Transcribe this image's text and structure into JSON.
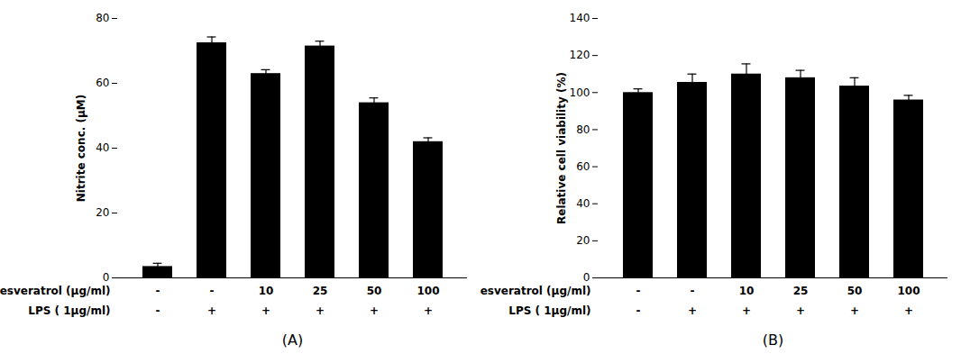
{
  "chart_data": [
    {
      "type": "bar",
      "ylabel": "Nitrite conc. (μM)",
      "xlabel": "(A)",
      "categories": [
        [
          "-",
          "-"
        ],
        [
          "-",
          "+"
        ],
        [
          "10",
          "+"
        ],
        [
          "25",
          "+"
        ],
        [
          "50",
          "+"
        ],
        [
          "100",
          "+"
        ]
      ],
      "category_rows": [
        "Resveratrol (μg/ml)",
        "LPS ( 1μg/ml)"
      ],
      "values": [
        3.5,
        72.5,
        63.0,
        71.5,
        54.0,
        42.0
      ],
      "errors": [
        1.0,
        1.8,
        1.2,
        1.5,
        1.5,
        1.2
      ],
      "color": "#000000",
      "ylim": [
        0,
        80
      ],
      "yticks": [
        0,
        20,
        40,
        60,
        80
      ],
      "grid": false
    },
    {
      "type": "bar",
      "ylabel": "Relative cell viability (%)",
      "xlabel": "(B)",
      "categories": [
        [
          "-",
          "-"
        ],
        [
          "-",
          "+"
        ],
        [
          "10",
          "+"
        ],
        [
          "25",
          "+"
        ],
        [
          "50",
          "+"
        ],
        [
          "100",
          "+"
        ]
      ],
      "category_rows": [
        "Resveratrol (μg/ml)",
        "LPS ( 1μg/ml)"
      ],
      "values": [
        100.0,
        105.5,
        110.0,
        108.0,
        103.5,
        96.0
      ],
      "errors": [
        2.0,
        4.5,
        5.5,
        4.0,
        4.5,
        2.5
      ],
      "color": "#000000",
      "ylim": [
        0,
        140
      ],
      "yticks": [
        0,
        20,
        40,
        60,
        80,
        100,
        120,
        140
      ],
      "grid": false
    }
  ]
}
